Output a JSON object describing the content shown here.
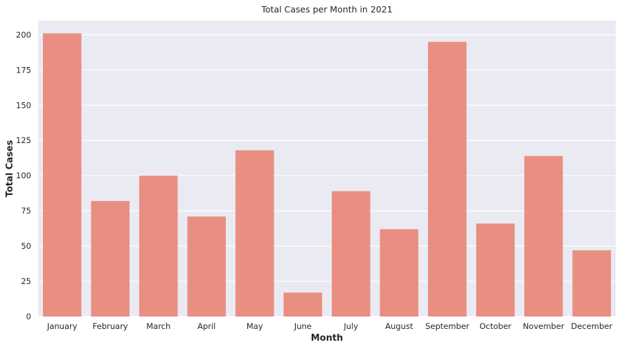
{
  "chart_data": {
    "type": "bar",
    "title": "Total Cases per Month in 2021",
    "xlabel": "Month",
    "ylabel": "Total Cases",
    "categories": [
      "January",
      "February",
      "March",
      "April",
      "May",
      "June",
      "July",
      "August",
      "September",
      "October",
      "November",
      "December"
    ],
    "values": [
      201,
      82,
      100,
      71,
      118,
      17,
      89,
      62,
      195,
      66,
      114,
      47
    ],
    "ylim": [
      0,
      210
    ],
    "yticks": [
      0,
      25,
      50,
      75,
      100,
      125,
      150,
      175,
      200
    ],
    "grid": true,
    "colors": {
      "bar": "#e98f82",
      "background": "#eaeaf2",
      "grid": "#ffffff"
    }
  }
}
